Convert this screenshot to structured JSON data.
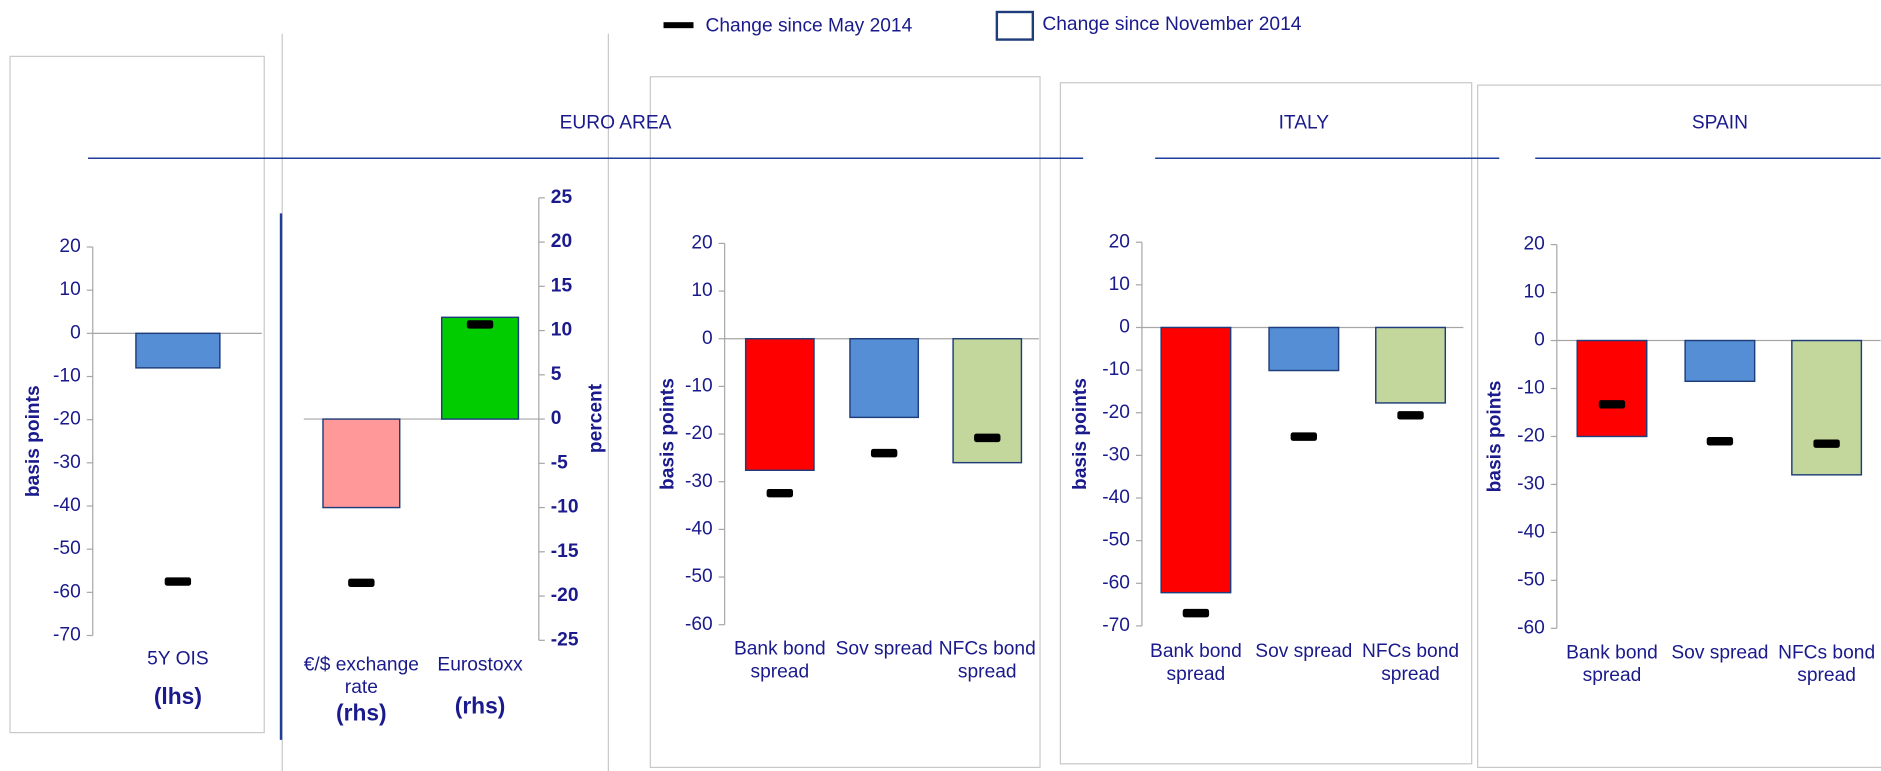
{
  "legend": [
    "Change since May 2014",
    "Change since November 2014"
  ],
  "groups": [
    "EURO AREA",
    "ITALY",
    "SPAIN"
  ],
  "chart_data": [
    {
      "type": "bar",
      "categories": [
        "5Y OIS"
      ],
      "category_notes": [
        "(lhs)"
      ],
      "ylabel": "basis points",
      "axis_side": "left",
      "ylim": [
        -70,
        20
      ],
      "yticks": [
        -70,
        -60,
        -50,
        -40,
        -30,
        -20,
        -10,
        0,
        10,
        20
      ],
      "bars": {
        "values": [
          -8
        ],
        "colors": [
          "#558ed5"
        ]
      },
      "markers": {
        "values": [
          -57.5
        ],
        "color": "#000000"
      }
    },
    {
      "type": "bar",
      "categories": [
        "€/$ exchange rate",
        "Eurostoxx"
      ],
      "category_notes": [
        "(rhs)",
        "(rhs)"
      ],
      "ylabel": "percent",
      "axis_side": "right",
      "ylim": [
        -25,
        25
      ],
      "yticks": [
        -25,
        -20,
        -15,
        -10,
        -5,
        0,
        5,
        10,
        15,
        20,
        25
      ],
      "bars": {
        "values": [
          -10,
          11.5
        ],
        "colors": [
          "#ff9999",
          "#00cc00"
        ]
      },
      "markers": {
        "values": [
          -18.5,
          10.7
        ],
        "color": "#000000"
      }
    },
    {
      "type": "bar",
      "categories": [
        "Bank bond spread",
        "Sov spread",
        "NFCs bond spread"
      ],
      "ylabel": "basis points",
      "axis_side": "left",
      "ylim": [
        -60,
        20
      ],
      "yticks": [
        -60,
        -50,
        -40,
        -30,
        -20,
        -10,
        0,
        10,
        20
      ],
      "bars": {
        "values": [
          -27.6,
          -16.5,
          -26
        ],
        "colors": [
          "#ff0000",
          "#558ed5",
          "#c3d69b"
        ]
      },
      "markers": {
        "values": [
          -32.4,
          -24,
          -20.8
        ],
        "color": "#000000"
      }
    },
    {
      "type": "bar",
      "categories": [
        "Bank bond spread",
        "Sov spread",
        "NFCs bond spread"
      ],
      "ylabel": "basis points",
      "axis_side": "left",
      "ylim": [
        -70,
        20
      ],
      "yticks": [
        -70,
        -60,
        -50,
        -40,
        -30,
        -20,
        -10,
        0,
        10,
        20
      ],
      "bars": {
        "values": [
          -62.2,
          -10.1,
          -17.7
        ],
        "colors": [
          "#ff0000",
          "#558ed5",
          "#c3d69b"
        ]
      },
      "markers": {
        "values": [
          -67,
          -25.6,
          -20.6
        ],
        "color": "#000000"
      }
    },
    {
      "type": "bar",
      "categories": [
        "Bank bond spread",
        "Sov spread",
        "NFCs bond spread"
      ],
      "ylabel": "basis points",
      "axis_side": "left",
      "ylim": [
        -60,
        20
      ],
      "yticks": [
        -60,
        -50,
        -40,
        -30,
        -20,
        -10,
        0,
        10,
        20
      ],
      "bars": {
        "values": [
          -20,
          -8.5,
          -28
        ],
        "colors": [
          "#ff0000",
          "#558ed5",
          "#c3d69b"
        ]
      },
      "markers": {
        "values": [
          -13.3,
          -21,
          -21.5
        ],
        "color": "#000000"
      }
    }
  ]
}
